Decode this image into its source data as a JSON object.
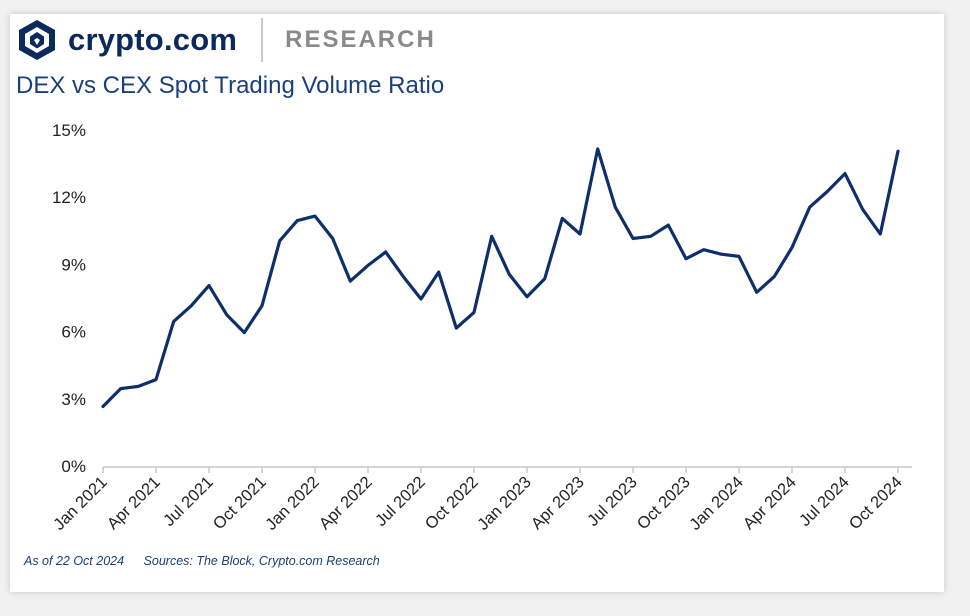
{
  "header": {
    "brand": "crypto.com",
    "section": "RESEARCH",
    "logo_icon": "crypto-com-lion-shield-icon"
  },
  "colors": {
    "brand_navy": "#0b2a5b",
    "line": "#0f2f6b",
    "title": "#1c3f7a",
    "axis": "#c7c7c7"
  },
  "footer": {
    "as_of": "As of 22 Oct 2024",
    "sources": "Sources: The Block, Crypto.com Research"
  },
  "chart_data": {
    "type": "line",
    "title": "DEX vs CEX Spot Trading Volume Ratio",
    "xlabel": "",
    "ylabel": "",
    "ylim": [
      0,
      15
    ],
    "yticks": [
      "0%",
      "3%",
      "6%",
      "9%",
      "12%",
      "15%"
    ],
    "yticks_values": [
      0,
      3,
      6,
      9,
      12,
      15
    ],
    "xtick_labels": [
      "Jan 2021",
      "Apr 2021",
      "Jul 2021",
      "Oct 2021",
      "Jan 2022",
      "Apr 2022",
      "Jul 2022",
      "Oct 2022",
      "Jan 2023",
      "Apr 2023",
      "Jul 2023",
      "Oct 2023",
      "Jan 2024",
      "Apr 2024",
      "Jul 2024",
      "Oct 2024"
    ],
    "xtick_months": [
      "2021-01",
      "2021-04",
      "2021-07",
      "2021-10",
      "2022-01",
      "2022-04",
      "2022-07",
      "2022-10",
      "2023-01",
      "2023-04",
      "2023-07",
      "2023-10",
      "2024-01",
      "2024-04",
      "2024-07",
      "2024-10"
    ],
    "grid": false,
    "series": [
      {
        "x": [
          "2021-01",
          "2021-02",
          "2021-03",
          "2021-04",
          "2021-05",
          "2021-06",
          "2021-07",
          "2021-08",
          "2021-09",
          "2021-10",
          "2021-11",
          "2021-12",
          "2022-01",
          "2022-02",
          "2022-03",
          "2022-04",
          "2022-05",
          "2022-06",
          "2022-07",
          "2022-08",
          "2022-09",
          "2022-10",
          "2022-11",
          "2022-12",
          "2023-01",
          "2023-02",
          "2023-03",
          "2023-04",
          "2023-05",
          "2023-06",
          "2023-07",
          "2023-08",
          "2023-09",
          "2023-10",
          "2023-11",
          "2023-12",
          "2024-01",
          "2024-02",
          "2024-03",
          "2024-04",
          "2024-05",
          "2024-06",
          "2024-07",
          "2024-08",
          "2024-09",
          "2024-10"
        ],
        "values": [
          2.7,
          3.5,
          3.6,
          3.9,
          6.5,
          7.2,
          8.1,
          6.8,
          6.0,
          7.2,
          10.1,
          11.0,
          11.2,
          10.2,
          8.3,
          9.0,
          9.6,
          8.5,
          7.5,
          8.7,
          6.2,
          6.9,
          10.3,
          8.6,
          7.6,
          8.4,
          11.1,
          10.4,
          14.2,
          11.6,
          10.2,
          10.3,
          10.8,
          9.3,
          9.7,
          9.5,
          9.4,
          7.8,
          8.5,
          9.8,
          11.6,
          12.3,
          13.1,
          11.5,
          10.4,
          14.1
        ]
      }
    ]
  }
}
